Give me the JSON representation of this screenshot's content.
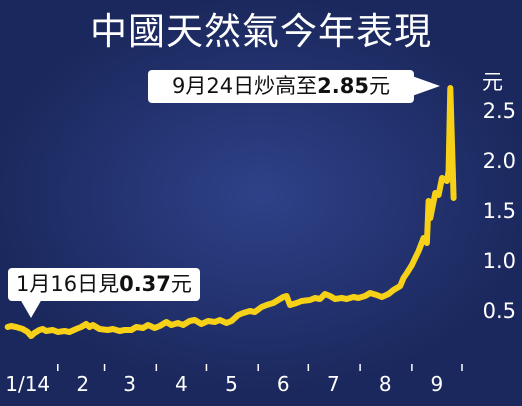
{
  "chart_data": {
    "type": "line",
    "title": "中國天然氣今年表現",
    "ylabel": "元",
    "ylim": [
      0,
      3
    ],
    "yticks": [
      "0.5",
      "1.0",
      "1.5",
      "2.0",
      "2.5"
    ],
    "xticks": [
      "1/14",
      "2",
      "3",
      "4",
      "5",
      "6",
      "7",
      "8",
      "9"
    ],
    "grid": false,
    "series": [
      {
        "x": [
          "1/2",
          "1/4",
          "1/7",
          "1/9",
          "1/11",
          "1/14",
          "1/16",
          "1/18",
          "1/21",
          "1/23",
          "1/25",
          "1/29",
          "2/1",
          "2/5",
          "2/8",
          "2/12",
          "2/15",
          "2/18",
          "2/20",
          "2/22",
          "2/26",
          "3/3",
          "3/6",
          "3/10",
          "3/13",
          "3/17",
          "3/20",
          "3/24",
          "3/27",
          "3/31",
          "4/3",
          "4/7",
          "4/10",
          "4/14",
          "4/17",
          "4/21",
          "4/24",
          "4/28",
          "5/2",
          "5/6",
          "5/9",
          "5/13",
          "5/16",
          "5/20",
          "5/23",
          "5/27",
          "5/30",
          "6/3",
          "6/6",
          "6/10",
          "6/13",
          "6/16",
          "6/18",
          "6/20",
          "6/24",
          "6/27",
          "7/2",
          "7/5",
          "7/8",
          "7/11",
          "7/14",
          "7/17",
          "7/21",
          "7/24",
          "7/28",
          "7/31",
          "8/4",
          "8/7",
          "8/11",
          "8/14",
          "8/18",
          "8/21",
          "8/25",
          "8/27",
          "8/29",
          "9/1",
          "9/3",
          "9/5",
          "9/8",
          "9/10",
          "9/11",
          "9/12",
          "9/15",
          "9/17",
          "9/19",
          "9/22",
          "9/23",
          "9/24",
          "9/26"
        ],
        "y": [
          0.46,
          0.47,
          0.46,
          0.45,
          0.44,
          0.41,
          0.37,
          0.4,
          0.43,
          0.44,
          0.42,
          0.43,
          0.41,
          0.42,
          0.41,
          0.44,
          0.46,
          0.49,
          0.46,
          0.48,
          0.44,
          0.43,
          0.44,
          0.42,
          0.43,
          0.43,
          0.46,
          0.45,
          0.48,
          0.45,
          0.47,
          0.51,
          0.48,
          0.5,
          0.48,
          0.52,
          0.53,
          0.49,
          0.52,
          0.51,
          0.53,
          0.5,
          0.52,
          0.58,
          0.6,
          0.62,
          0.61,
          0.66,
          0.68,
          0.7,
          0.73,
          0.76,
          0.77,
          0.68,
          0.7,
          0.72,
          0.73,
          0.75,
          0.74,
          0.79,
          0.77,
          0.74,
          0.75,
          0.74,
          0.76,
          0.75,
          0.77,
          0.8,
          0.78,
          0.76,
          0.79,
          0.83,
          0.87,
          0.95,
          1.0,
          1.08,
          1.15,
          1.22,
          1.35,
          1.3,
          1.72,
          1.55,
          1.8,
          1.78,
          1.95,
          1.92,
          2.02,
          2.85,
          1.75
        ]
      }
    ],
    "annotations": [
      {
        "text_before": "9月24日炒高至",
        "value_text": "2.85",
        "text_after": "元"
      },
      {
        "text_before": "1月16日見",
        "value_text": "0.37",
        "text_after": "元"
      }
    ],
    "colors": {
      "background": "#1b285d",
      "line": "#f7d117",
      "text": "#ffffff",
      "callout_background": "#ffffff",
      "callout_text": "#111111"
    }
  }
}
